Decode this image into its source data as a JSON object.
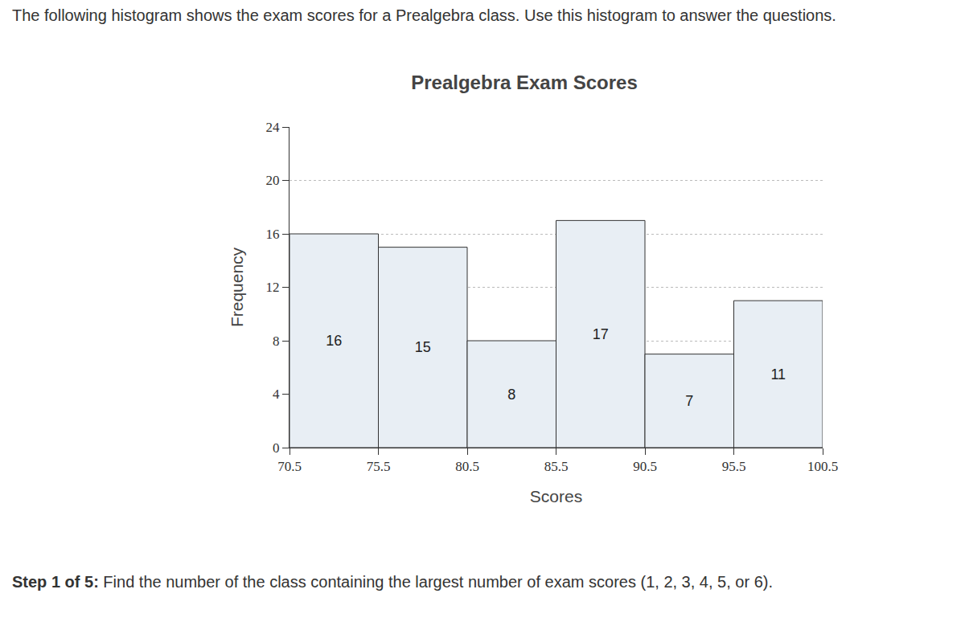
{
  "header": {
    "text": "The following histogram shows the exam scores for a Prealgebra class. Use this histogram to answer the questions."
  },
  "chart_data": {
    "type": "histogram",
    "title": "Prealgebra Exam Scores",
    "x_label": "Scores",
    "y_label": "Frequency",
    "bins": [
      70.5,
      75.5,
      80.5,
      85.5,
      90.5,
      95.5,
      100.5
    ],
    "values": [
      16,
      15,
      8,
      17,
      7,
      11
    ],
    "color": "#e8eef4",
    "xlim": [
      70.5,
      100.5
    ],
    "xticks": [
      70.5,
      75.5,
      80.5,
      85.5,
      90.5,
      95.5,
      100.5
    ],
    "ylim": [
      0,
      24
    ],
    "yticks": [
      0,
      4,
      8,
      12,
      16,
      20,
      24
    ],
    "grid": true,
    "data_labels": true
  },
  "footer": {
    "step": "Step 1 of 5:",
    "text": "Find the number of the class containing the largest number of exam scores (1, 2, 3, 4, 5, or 6)."
  }
}
